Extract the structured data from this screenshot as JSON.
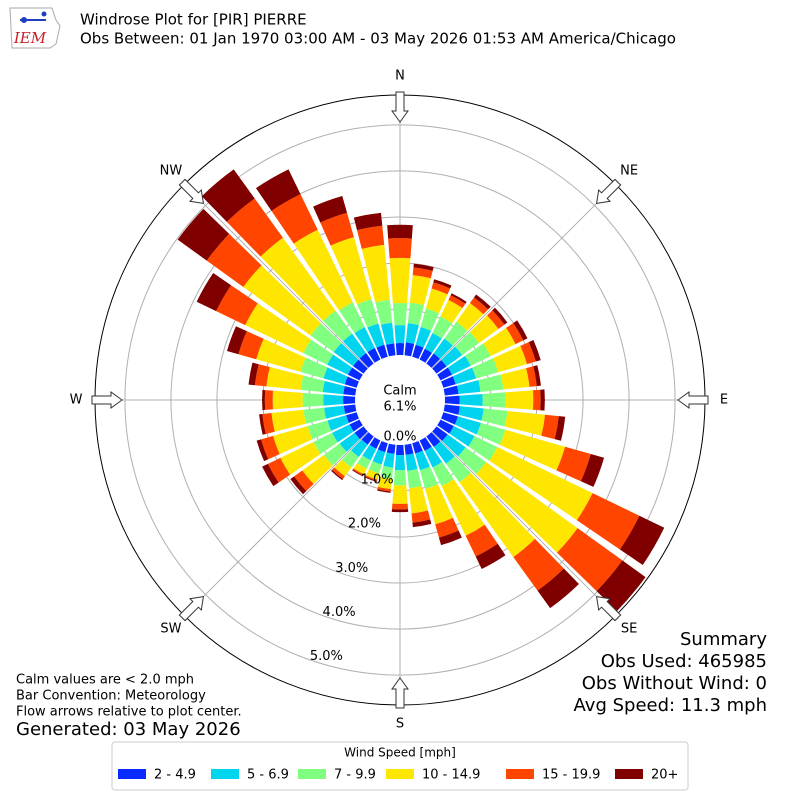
{
  "chart_data": {
    "type": "windrose",
    "title": "Windrose Plot for [PIR] PIERRE",
    "subtitle": "Obs Between: 01 Jan 1970 03:00 AM - 03 May 2026 01:53 AM America/Chicago",
    "logo_text": "IEM",
    "calm_label": "Calm",
    "calm_value_label": "6.1%",
    "summary_title": "Summary",
    "summary_lines": [
      "Obs Used: 465985",
      "Obs Without Wind: 0",
      "Avg Speed: 11.3 mph"
    ],
    "notes": [
      "Calm values are < 2.0 mph",
      "Bar Convention: Meteorology",
      "Flow arrows relative to plot center."
    ],
    "generated": "Generated: 03 May 2026",
    "legend_title": "Wind Speed [mph]",
    "directions": [
      0,
      10,
      20,
      30,
      40,
      50,
      60,
      70,
      80,
      90,
      100,
      110,
      120,
      130,
      140,
      150,
      160,
      170,
      180,
      190,
      200,
      210,
      220,
      230,
      240,
      250,
      260,
      270,
      280,
      290,
      300,
      310,
      320,
      330,
      340,
      350
    ],
    "xticks": [
      {
        "value": 0,
        "label": "N"
      },
      {
        "value": 45,
        "label": "NE"
      },
      {
        "value": 90,
        "label": "E"
      },
      {
        "value": 135,
        "label": "SE"
      },
      {
        "value": 180,
        "label": "S"
      },
      {
        "value": 225,
        "label": "SW"
      },
      {
        "value": 270,
        "label": "W"
      },
      {
        "value": 315,
        "label": "NW"
      }
    ],
    "ylim": [
      0,
      5.65
    ],
    "yticks": [
      {
        "value": 0,
        "label": "0.0%"
      },
      {
        "value": 1,
        "label": "1.0%"
      },
      {
        "value": 2,
        "label": "2.0%"
      },
      {
        "value": 3,
        "label": "3.0%"
      },
      {
        "value": 4,
        "label": "4.0%"
      },
      {
        "value": 5,
        "label": "5.0%"
      }
    ],
    "grid": true,
    "series": [
      {
        "name": "2 - 4.9",
        "color": "#0a2bff",
        "values": [
          0.26,
          0.28,
          0.27,
          0.26,
          0.27,
          0.27,
          0.28,
          0.28,
          0.3,
          0.32,
          0.33,
          0.33,
          0.32,
          0.3,
          0.28,
          0.25,
          0.23,
          0.22,
          0.22,
          0.2,
          0.2,
          0.2,
          0.22,
          0.24,
          0.24,
          0.24,
          0.25,
          0.26,
          0.26,
          0.27,
          0.28,
          0.28,
          0.28,
          0.28,
          0.27,
          0.26
        ]
      },
      {
        "name": "5 - 6.9",
        "color": "#00d4ef",
        "values": [
          0.39,
          0.42,
          0.4,
          0.38,
          0.4,
          0.42,
          0.45,
          0.46,
          0.48,
          0.5,
          0.52,
          0.52,
          0.5,
          0.48,
          0.45,
          0.4,
          0.38,
          0.35,
          0.33,
          0.3,
          0.28,
          0.28,
          0.33,
          0.4,
          0.42,
          0.42,
          0.43,
          0.43,
          0.45,
          0.48,
          0.5,
          0.52,
          0.52,
          0.5,
          0.48,
          0.45
        ]
      },
      {
        "name": "7 - 9.9",
        "color": "#80ff80",
        "values": [
          0.48,
          0.45,
          0.42,
          0.4,
          0.45,
          0.45,
          0.48,
          0.5,
          0.5,
          0.5,
          0.52,
          0.55,
          0.55,
          0.55,
          0.5,
          0.45,
          0.42,
          0.38,
          0.33,
          0.25,
          0.2,
          0.2,
          0.28,
          0.42,
          0.45,
          0.45,
          0.45,
          0.45,
          0.48,
          0.52,
          0.58,
          0.62,
          0.62,
          0.6,
          0.55,
          0.5
        ]
      },
      {
        "name": "10 - 14.9",
        "color": "#ffe600",
        "values": [
          0.98,
          0.6,
          0.45,
          0.4,
          0.5,
          0.52,
          0.6,
          0.65,
          0.57,
          0.6,
          0.82,
          1.35,
          2.3,
          2.45,
          2.0,
          1.2,
          0.8,
          0.55,
          0.4,
          0.22,
          0.14,
          0.14,
          0.24,
          0.58,
          0.8,
          0.78,
          0.7,
          0.65,
          0.75,
          1.0,
          1.4,
          1.8,
          1.95,
          1.75,
          1.4,
          1.2
        ]
      },
      {
        "name": "15 - 19.9",
        "color": "#ff4500",
        "values": [
          0.43,
          0.17,
          0.14,
          0.11,
          0.15,
          0.16,
          0.19,
          0.2,
          0.16,
          0.16,
          0.3,
          0.58,
          1.13,
          1.2,
          0.9,
          0.5,
          0.3,
          0.2,
          0.12,
          0.05,
          0.03,
          0.03,
          0.07,
          0.22,
          0.3,
          0.27,
          0.2,
          0.17,
          0.25,
          0.4,
          0.7,
          0.98,
          1.05,
          0.86,
          0.55,
          0.42
        ]
      },
      {
        "name": "20+",
        "color": "#800000",
        "values": [
          0.29,
          0.08,
          0.07,
          0.05,
          0.08,
          0.08,
          0.1,
          0.11,
          0.09,
          0.09,
          0.14,
          0.3,
          0.6,
          0.62,
          0.47,
          0.3,
          0.17,
          0.1,
          0.06,
          0.03,
          0.02,
          0.02,
          0.03,
          0.1,
          0.14,
          0.1,
          0.07,
          0.06,
          0.14,
          0.26,
          0.47,
          0.78,
          0.78,
          0.6,
          0.38,
          0.28
        ]
      }
    ]
  }
}
